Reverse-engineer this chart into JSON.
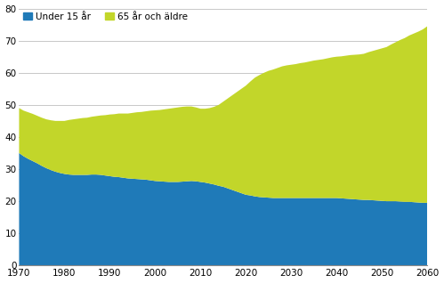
{
  "years": [
    1970,
    1971,
    1972,
    1973,
    1974,
    1975,
    1976,
    1977,
    1978,
    1979,
    1980,
    1981,
    1982,
    1983,
    1984,
    1985,
    1986,
    1987,
    1988,
    1989,
    1990,
    1991,
    1992,
    1993,
    1994,
    1995,
    1996,
    1997,
    1998,
    1999,
    2000,
    2001,
    2002,
    2003,
    2004,
    2005,
    2006,
    2007,
    2008,
    2009,
    2010,
    2011,
    2012,
    2013,
    2014,
    2015,
    2016,
    2017,
    2018,
    2019,
    2020,
    2021,
    2022,
    2023,
    2024,
    2025,
    2026,
    2027,
    2028,
    2029,
    2030,
    2031,
    2032,
    2033,
    2034,
    2035,
    2036,
    2037,
    2038,
    2039,
    2040,
    2041,
    2042,
    2043,
    2044,
    2045,
    2046,
    2047,
    2048,
    2049,
    2050,
    2051,
    2052,
    2053,
    2054,
    2055,
    2056,
    2057,
    2058,
    2059,
    2060
  ],
  "under15": [
    35.0,
    34.0,
    33.2,
    32.5,
    31.8,
    31.0,
    30.3,
    29.7,
    29.2,
    28.8,
    28.5,
    28.3,
    28.2,
    28.2,
    28.2,
    28.2,
    28.3,
    28.3,
    28.2,
    28.0,
    27.8,
    27.6,
    27.5,
    27.3,
    27.1,
    27.0,
    26.9,
    26.8,
    26.7,
    26.5,
    26.3,
    26.2,
    26.1,
    26.0,
    26.0,
    26.0,
    26.1,
    26.2,
    26.3,
    26.2,
    26.0,
    25.8,
    25.5,
    25.2,
    24.8,
    24.5,
    24.0,
    23.5,
    23.0,
    22.5,
    22.0,
    21.8,
    21.5,
    21.3,
    21.2,
    21.1,
    21.0,
    21.0,
    21.0,
    21.0,
    21.0,
    21.0,
    21.0,
    21.0,
    21.0,
    21.0,
    21.0,
    21.0,
    21.0,
    21.0,
    21.0,
    20.9,
    20.8,
    20.7,
    20.6,
    20.5,
    20.4,
    20.4,
    20.3,
    20.2,
    20.1,
    20.0,
    20.0,
    20.0,
    19.9,
    19.8,
    19.8,
    19.7,
    19.6,
    19.5,
    19.5
  ],
  "over65": [
    14.0,
    14.2,
    14.5,
    14.7,
    14.8,
    15.0,
    15.2,
    15.5,
    15.8,
    16.2,
    16.5,
    17.0,
    17.3,
    17.5,
    17.7,
    17.8,
    18.0,
    18.2,
    18.5,
    18.8,
    19.2,
    19.5,
    19.8,
    20.0,
    20.2,
    20.5,
    20.8,
    21.0,
    21.3,
    21.7,
    22.0,
    22.2,
    22.5,
    22.8,
    23.0,
    23.2,
    23.3,
    23.3,
    23.2,
    23.0,
    22.8,
    23.0,
    23.5,
    24.2,
    25.2,
    26.5,
    28.0,
    29.5,
    31.0,
    32.5,
    34.0,
    35.5,
    37.0,
    38.0,
    38.8,
    39.5,
    40.0,
    40.5,
    41.0,
    41.3,
    41.5,
    41.7,
    42.0,
    42.2,
    42.5,
    42.8,
    43.0,
    43.2,
    43.5,
    43.8,
    44.0,
    44.2,
    44.5,
    44.8,
    45.0,
    45.2,
    45.5,
    46.0,
    46.5,
    47.0,
    47.5,
    48.0,
    48.8,
    49.5,
    50.3,
    51.0,
    51.8,
    52.5,
    53.2,
    54.0,
    55.0
  ],
  "color_under15": "#1f7ab8",
  "color_over65": "#c2d62a",
  "ylim": [
    0,
    80
  ],
  "yticks": [
    0,
    10,
    20,
    30,
    40,
    50,
    60,
    70,
    80
  ],
  "xlim": [
    1970,
    2060
  ],
  "xticks": [
    1970,
    1980,
    1990,
    2000,
    2010,
    2020,
    2030,
    2040,
    2050,
    2060
  ],
  "legend_under15": "Under 15 år",
  "legend_over65": "65 år och äldre",
  "bg_color": "#ffffff",
  "grid_color": "#c8c8c8"
}
